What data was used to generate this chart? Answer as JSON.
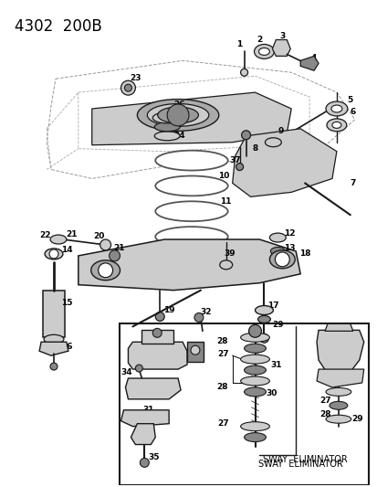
{
  "title": "4302  200B",
  "bg_color": "#ffffff",
  "fig_width": 4.14,
  "fig_height": 5.33,
  "dpi": 100,
  "title_fontsize": 12,
  "label_fontsize": 6.5,
  "sway_text": "SWAY  ELIMINATOR",
  "sway_text_fontsize": 7
}
